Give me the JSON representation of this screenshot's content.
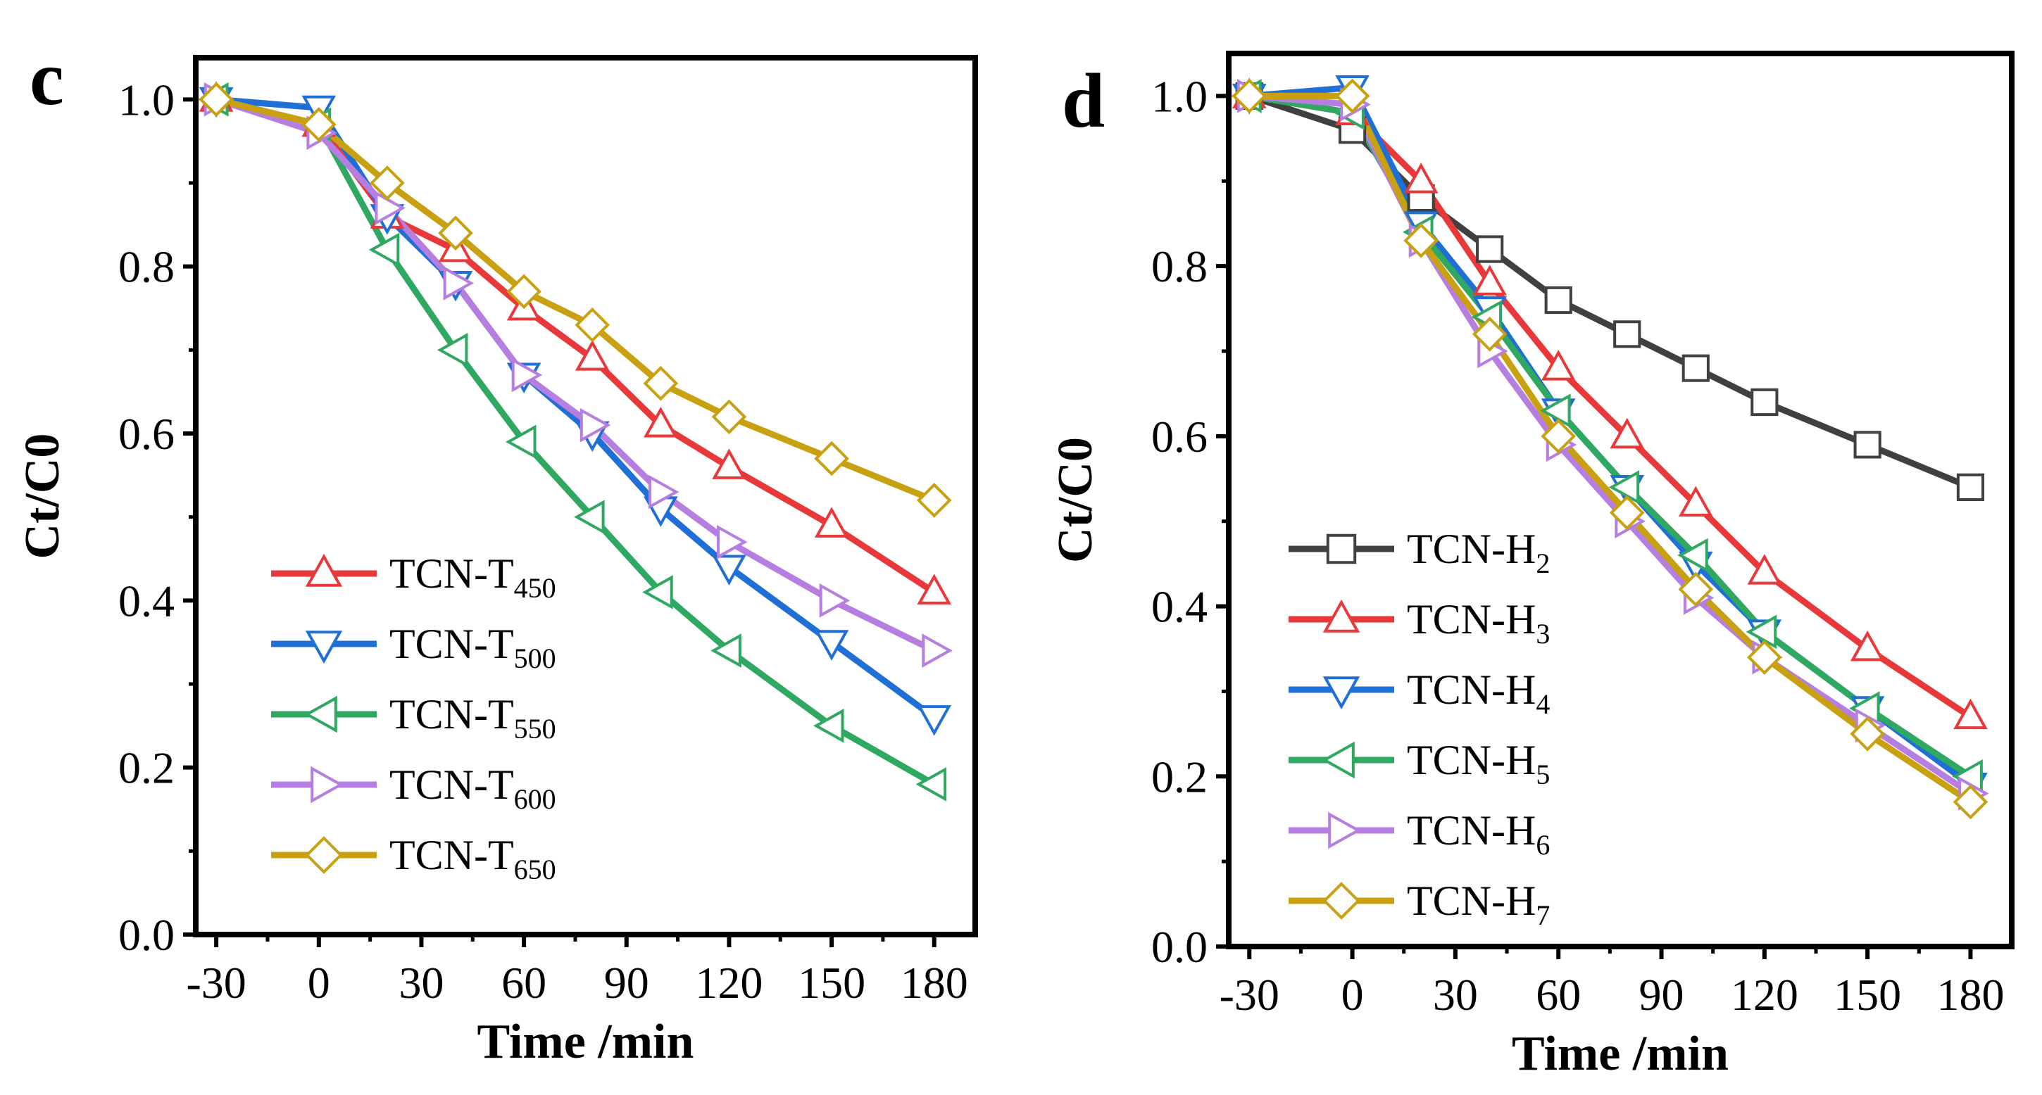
{
  "chart_data": [
    {
      "panel": "c",
      "type": "line",
      "xlabel": "Time /min",
      "ylabel": "Ct/C0",
      "xlim": [
        -36,
        192
      ],
      "ylim": [
        0,
        1.05
      ],
      "xticks": [
        -30,
        0,
        30,
        60,
        90,
        120,
        150,
        180
      ],
      "yticks": [
        0.0,
        0.2,
        0.4,
        0.6,
        0.8,
        1.0
      ],
      "xtick_labels": [
        "-30",
        "0",
        "30",
        "60",
        "90",
        "120",
        "150",
        "180"
      ],
      "ytick_labels": [
        "0.0",
        "0.2",
        "0.4",
        "0.6",
        "0.8",
        "1.0"
      ],
      "legend_position": "lower-left",
      "x": [
        -30,
        0,
        20,
        40,
        60,
        80,
        100,
        120,
        150,
        180
      ],
      "series": [
        {
          "name": "TCN-T450",
          "label_main": "TCN-T",
          "label_sub": "450",
          "color": "#e8383a",
          "marker": "triangle-up",
          "values": [
            1.0,
            0.97,
            0.86,
            0.82,
            0.75,
            0.69,
            0.61,
            0.56,
            0.49,
            0.41
          ]
        },
        {
          "name": "TCN-T500",
          "label_main": "TCN-T",
          "label_sub": "500",
          "color": "#1f6fd6",
          "marker": "triangle-down",
          "values": [
            1.0,
            0.99,
            0.86,
            0.78,
            0.67,
            0.6,
            0.51,
            0.44,
            0.35,
            0.26
          ]
        },
        {
          "name": "TCN-T550",
          "label_main": "TCN-T",
          "label_sub": "550",
          "color": "#2fa862",
          "marker": "triangle-left",
          "values": [
            1.0,
            0.97,
            0.82,
            0.7,
            0.59,
            0.5,
            0.41,
            0.34,
            0.25,
            0.18
          ]
        },
        {
          "name": "TCN-T600",
          "label_main": "TCN-T",
          "label_sub": "600",
          "color": "#b57ee0",
          "marker": "triangle-right",
          "values": [
            1.0,
            0.96,
            0.87,
            0.78,
            0.67,
            0.61,
            0.53,
            0.47,
            0.4,
            0.34
          ]
        },
        {
          "name": "TCN-T650",
          "label_main": "TCN-T",
          "label_sub": "650",
          "color": "#c9a010",
          "marker": "diamond",
          "values": [
            1.0,
            0.97,
            0.9,
            0.84,
            0.77,
            0.73,
            0.66,
            0.62,
            0.57,
            0.52
          ]
        }
      ]
    },
    {
      "panel": "d",
      "type": "line",
      "xlabel": "Time /min",
      "ylabel": "Ct/C0",
      "xlim": [
        -36,
        192
      ],
      "ylim": [
        0,
        1.05
      ],
      "xticks": [
        -30,
        0,
        30,
        60,
        90,
        120,
        150,
        180
      ],
      "yticks": [
        0.0,
        0.2,
        0.4,
        0.6,
        0.8,
        1.0
      ],
      "xtick_labels": [
        "-30",
        "0",
        "30",
        "60",
        "90",
        "120",
        "150",
        "180"
      ],
      "ytick_labels": [
        "0.0",
        "0.2",
        "0.4",
        "0.6",
        "0.8",
        "1.0"
      ],
      "legend_position": "lower-left",
      "x": [
        -30,
        0,
        20,
        40,
        60,
        80,
        100,
        120,
        150,
        180
      ],
      "series": [
        {
          "name": "TCN-H2",
          "label_main": "TCN-H",
          "label_sub": "2",
          "color": "#404040",
          "marker": "square",
          "values": [
            1.0,
            0.96,
            0.88,
            0.82,
            0.76,
            0.72,
            0.68,
            0.64,
            0.59,
            0.54
          ]
        },
        {
          "name": "TCN-H3",
          "label_main": "TCN-H",
          "label_sub": "3",
          "color": "#e8383a",
          "marker": "triangle-up",
          "values": [
            1.0,
            0.98,
            0.9,
            0.78,
            0.68,
            0.6,
            0.52,
            0.44,
            0.35,
            0.27
          ]
        },
        {
          "name": "TCN-H4",
          "label_main": "TCN-H",
          "label_sub": "4",
          "color": "#1f6fd6",
          "marker": "triangle-down",
          "values": [
            1.0,
            1.01,
            0.85,
            0.75,
            0.63,
            0.54,
            0.45,
            0.37,
            0.28,
            0.19
          ]
        },
        {
          "name": "TCN-H5",
          "label_main": "TCN-H",
          "label_sub": "5",
          "color": "#2fa862",
          "marker": "triangle-left",
          "values": [
            1.0,
            0.98,
            0.84,
            0.74,
            0.63,
            0.54,
            0.46,
            0.37,
            0.28,
            0.2
          ]
        },
        {
          "name": "TCN-H6",
          "label_main": "TCN-H",
          "label_sub": "6",
          "color": "#b57ee0",
          "marker": "triangle-right",
          "values": [
            1.0,
            0.99,
            0.83,
            0.7,
            0.59,
            0.5,
            0.41,
            0.34,
            0.26,
            0.18
          ]
        },
        {
          "name": "TCN-H7",
          "label_main": "TCN-H",
          "label_sub": "7",
          "color": "#c9a010",
          "marker": "diamond",
          "values": [
            1.0,
            1.0,
            0.83,
            0.72,
            0.6,
            0.51,
            0.42,
            0.34,
            0.25,
            0.17
          ]
        }
      ]
    }
  ]
}
